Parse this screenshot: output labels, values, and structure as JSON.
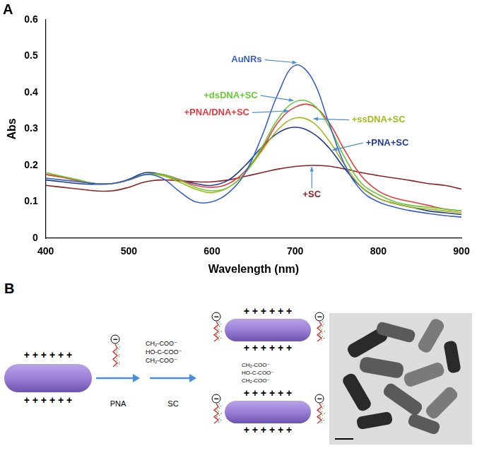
{
  "chart_data": {
    "type": "line",
    "title": "A",
    "x_label": "Wavelength (nm)",
    "y_label": "Abs",
    "x": [
      400,
      420,
      440,
      460,
      480,
      500,
      520,
      540,
      560,
      580,
      600,
      620,
      640,
      660,
      680,
      700,
      720,
      740,
      760,
      780,
      800,
      820,
      840,
      860,
      880,
      900
    ],
    "series": [
      {
        "name": "AuNRs",
        "color": "#3a5fcd",
        "values": [
          0.165,
          0.16,
          0.155,
          0.15,
          0.15,
          0.16,
          0.175,
          0.165,
          0.13,
          0.1,
          0.1,
          0.125,
          0.18,
          0.28,
          0.4,
          0.475,
          0.44,
          0.32,
          0.2,
          0.13,
          0.1,
          0.085,
          0.075,
          0.068,
          0.062,
          0.058
        ]
      },
      {
        "name": "+dsDNA+SC",
        "color": "#66cc33",
        "values": [
          0.18,
          0.17,
          0.16,
          0.15,
          0.15,
          0.16,
          0.175,
          0.175,
          0.16,
          0.14,
          0.13,
          0.14,
          0.18,
          0.25,
          0.33,
          0.375,
          0.37,
          0.31,
          0.22,
          0.15,
          0.12,
          0.1,
          0.09,
          0.085,
          0.08,
          0.075
        ]
      },
      {
        "name": "+PNA/DNA+SC",
        "color": "#e8383d",
        "values": [
          0.175,
          0.168,
          0.158,
          0.15,
          0.15,
          0.16,
          0.175,
          0.175,
          0.162,
          0.145,
          0.14,
          0.15,
          0.185,
          0.245,
          0.32,
          0.36,
          0.365,
          0.32,
          0.24,
          0.17,
          0.13,
          0.11,
          0.1,
          0.09,
          0.08,
          0.075
        ]
      },
      {
        "name": "+ssDNA+SC",
        "color": "#a6b81a",
        "values": [
          0.175,
          0.167,
          0.157,
          0.15,
          0.15,
          0.16,
          0.175,
          0.172,
          0.155,
          0.135,
          0.125,
          0.14,
          0.18,
          0.24,
          0.3,
          0.33,
          0.32,
          0.27,
          0.2,
          0.14,
          0.11,
          0.095,
          0.085,
          0.08,
          0.075,
          0.07
        ]
      },
      {
        "name": "+PNA+SC",
        "color": "#1f3a93",
        "values": [
          0.16,
          0.155,
          0.15,
          0.148,
          0.15,
          0.162,
          0.18,
          0.175,
          0.16,
          0.15,
          0.145,
          0.16,
          0.2,
          0.25,
          0.29,
          0.305,
          0.29,
          0.25,
          0.19,
          0.14,
          0.11,
          0.095,
          0.085,
          0.075,
          0.07,
          0.065
        ]
      },
      {
        "name": "+SC",
        "color": "#8b2323",
        "values": [
          0.145,
          0.14,
          0.135,
          0.13,
          0.13,
          0.14,
          0.155,
          0.16,
          0.158,
          0.155,
          0.155,
          0.16,
          0.17,
          0.18,
          0.19,
          0.197,
          0.2,
          0.198,
          0.19,
          0.18,
          0.172,
          0.165,
          0.158,
          0.15,
          0.145,
          0.135
        ]
      }
    ],
    "xlim": [
      400,
      900
    ],
    "xticks": [
      400,
      500,
      600,
      700,
      800,
      900
    ],
    "ylim": [
      0,
      0.6
    ],
    "yticks": [
      0,
      0.1,
      0.2,
      0.3,
      0.4,
      0.5,
      0.6
    ],
    "grid": false
  },
  "panel_b": {
    "label": "B",
    "rod_charges": "+ + + + + +",
    "steps": [
      "PNA",
      "SC"
    ],
    "citrate": [
      "CH₂-COO⁻",
      "HO-C-COO⁻",
      "CH₂-COO⁻"
    ],
    "negative_charge": "−"
  }
}
